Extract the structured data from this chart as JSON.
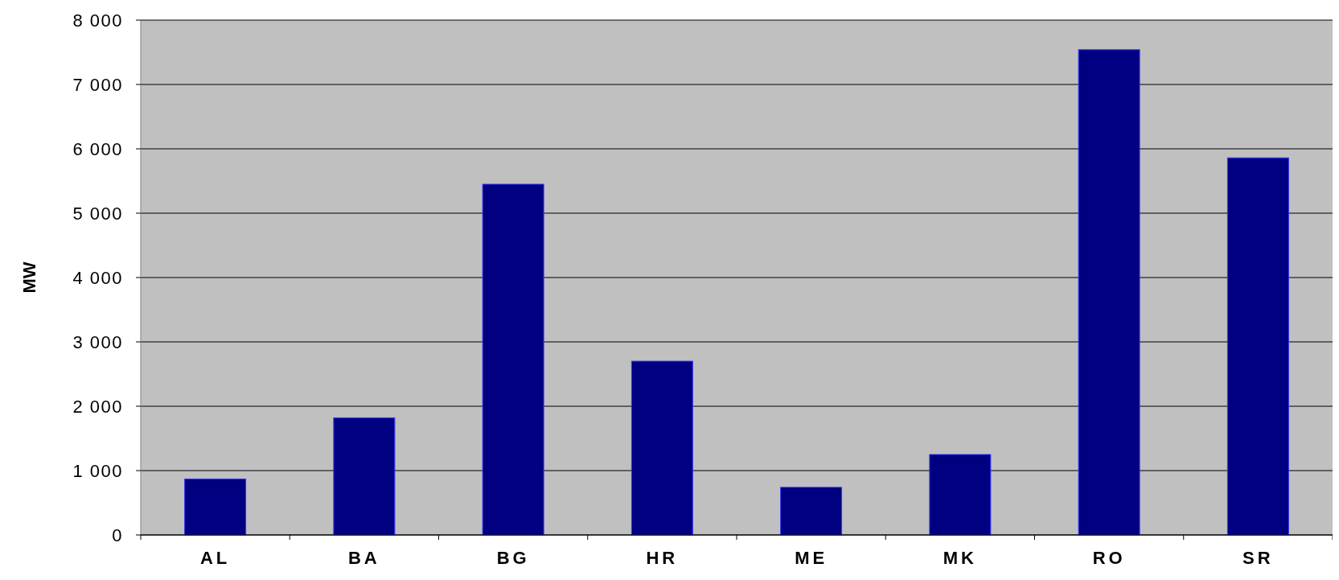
{
  "chart_data": {
    "type": "bar",
    "ylabel": "MW",
    "categories": [
      "AL",
      "BA",
      "BG",
      "HR",
      "ME",
      "MK",
      "RO",
      "SR"
    ],
    "values": [
      870,
      1820,
      5450,
      2700,
      740,
      1250,
      7540,
      5860
    ],
    "color": "#000080",
    "ylim": [
      0,
      8000
    ],
    "yticks": [
      {
        "value": 0,
        "label": "0"
      },
      {
        "value": 1000,
        "label": "1 000"
      },
      {
        "value": 2000,
        "label": "2 000"
      },
      {
        "value": 3000,
        "label": "3 000"
      },
      {
        "value": 4000,
        "label": "4 000"
      },
      {
        "value": 5000,
        "label": "5 000"
      },
      {
        "value": 6000,
        "label": "6 000"
      },
      {
        "value": 7000,
        "label": "7 000"
      },
      {
        "value": 8000,
        "label": "8 000"
      }
    ],
    "grid": "y"
  }
}
